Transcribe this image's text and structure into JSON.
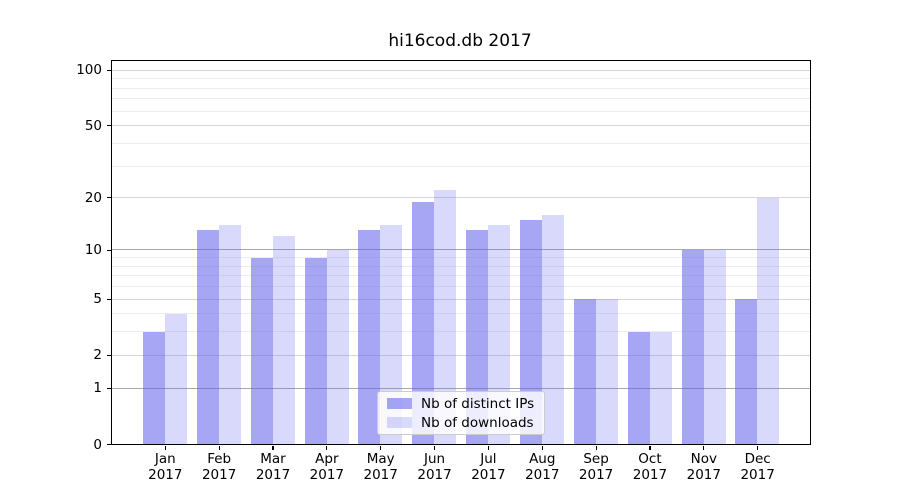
{
  "title": "hi16cod.db 2017",
  "chart_data": {
    "type": "bar",
    "title": "hi16cod.db 2017",
    "categories": [
      "Jan 2017",
      "Feb 2017",
      "Mar 2017",
      "Apr 2017",
      "May 2017",
      "Jun 2017",
      "Jul 2017",
      "Aug 2017",
      "Sep 2017",
      "Oct 2017",
      "Nov 2017",
      "Dec 2017"
    ],
    "series": [
      {
        "name": "Nb of distinct IPs",
        "values": [
          3,
          13,
          9,
          9,
          13,
          19,
          13,
          15,
          5,
          3,
          10,
          5
        ],
        "color": "#6666ee",
        "alpha": 0.58
      },
      {
        "name": "Nb of downloads",
        "values": [
          4,
          14,
          12,
          10,
          14,
          22,
          14,
          16,
          5,
          3,
          10,
          20
        ],
        "color": "#6666ee",
        "alpha": 0.25
      }
    ],
    "xlabel": "",
    "ylabel": "",
    "yscale": "log1p",
    "ylim": [
      0,
      100
    ],
    "yticks": [
      100,
      50,
      20,
      10,
      5,
      2,
      1,
      0
    ],
    "minor_gridlines": [
      3,
      4,
      6,
      7,
      8,
      9,
      30,
      40,
      60,
      70,
      80,
      90
    ],
    "grid": true,
    "legend_position": "lower center"
  },
  "legend": {
    "items": [
      {
        "label": "Nb of distinct IPs"
      },
      {
        "label": "Nb of downloads"
      }
    ]
  }
}
